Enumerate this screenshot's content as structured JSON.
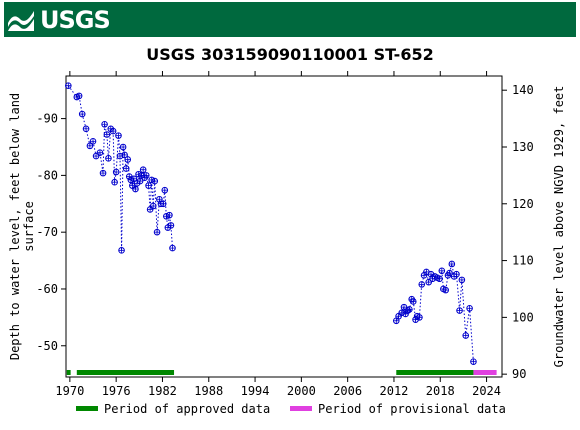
{
  "header": {
    "logo_text": "USGS",
    "logo_icon": "usgs-wave-icon",
    "brand_color": "#00693e"
  },
  "chart_data": {
    "type": "scatter",
    "title": "USGS 303159090110001 ST-652",
    "xlabel": "",
    "ylabel_left": "Depth to water level, feet below land surface",
    "ylabel_right": "Groundwater level above NGVD 1929, feet",
    "xlim": [
      1969.5,
      2026
    ],
    "ylim_left": [
      -44.5,
      -97.5
    ],
    "ylim_right": [
      89.5,
      142.5
    ],
    "y_left_inverted": true,
    "grid": false,
    "x_ticks": [
      1970,
      1976,
      1982,
      1988,
      1994,
      2000,
      2006,
      2012,
      2018,
      2024
    ],
    "x_tick_labels": [
      "1970",
      "1976",
      "1982",
      "1988",
      "1994",
      "2000",
      "2006",
      "2012",
      "2018",
      "2024"
    ],
    "y_left_ticks": [
      -90,
      -80,
      -70,
      -60,
      -50
    ],
    "y_left_tick_labels": [
      "-90",
      "-80",
      "-70",
      "-60",
      "-50"
    ],
    "y_right_ticks": [
      140,
      130,
      120,
      110,
      100,
      90
    ],
    "y_right_tick_labels": [
      "140",
      "130",
      "120",
      "110",
      "100",
      "90"
    ],
    "series": [
      {
        "color": "#0000cc",
        "marker": "open-circle-plus",
        "line_style": "dotted",
        "segments": [
          [
            [
              1969.8,
              -95.8
            ],
            [
              1970.9,
              -93.8
            ],
            [
              1971.2,
              -94
            ],
            [
              1971.6,
              -90.8
            ],
            [
              1972.1,
              -88.2
            ],
            [
              1972.6,
              -85.2
            ],
            [
              1973.0,
              -86
            ],
            [
              1973.4,
              -83.4
            ],
            [
              1973.9,
              -84
            ],
            [
              1974.3,
              -80.4
            ],
            [
              1974.5,
              -89
            ],
            [
              1974.8,
              -87.2
            ],
            [
              1975.0,
              -83
            ],
            [
              1975.3,
              -88.2
            ],
            [
              1975.6,
              -87.8
            ],
            [
              1975.8,
              -78.8
            ],
            [
              1976.0,
              -80.6
            ],
            [
              1976.3,
              -87
            ],
            [
              1976.5,
              -83.4
            ],
            [
              1976.7,
              -66.8
            ],
            [
              1976.9,
              -85
            ],
            [
              1977.1,
              -83.6
            ],
            [
              1977.3,
              -81.2
            ],
            [
              1977.5,
              -82.8
            ],
            [
              1977.7,
              -79.8
            ],
            [
              1977.9,
              -79.2
            ],
            [
              1978.1,
              -78.2
            ],
            [
              1978.3,
              -79.4
            ],
            [
              1978.5,
              -77.6
            ],
            [
              1978.7,
              -78.6
            ],
            [
              1978.9,
              -80.2
            ],
            [
              1979.1,
              -79
            ],
            [
              1979.3,
              -80
            ],
            [
              1979.5,
              -81
            ],
            [
              1979.7,
              -79.6
            ],
            [
              1979.9,
              -80
            ],
            [
              1980.2,
              -78.2
            ],
            [
              1980.4,
              -74
            ],
            [
              1980.6,
              -79.2
            ],
            [
              1980.8,
              -74.6
            ],
            [
              1981.0,
              -79
            ],
            [
              1981.3,
              -70
            ],
            [
              1981.6,
              -75.8
            ],
            [
              1981.8,
              -75
            ],
            [
              1982.1,
              -75
            ],
            [
              1982.3,
              -77.4
            ],
            [
              1982.5,
              -72.8
            ],
            [
              1982.7,
              -70.8
            ],
            [
              1982.9,
              -73
            ],
            [
              1983.1,
              -71.2
            ],
            [
              1983.3,
              -67.2
            ]
          ],
          [
            [
              2012.3,
              -54.4
            ],
            [
              2012.6,
              -55.2
            ],
            [
              2013.0,
              -55.8
            ],
            [
              2013.3,
              -56.8
            ],
            [
              2013.5,
              -55.6
            ],
            [
              2013.8,
              -56.2
            ],
            [
              2014.0,
              -56.4
            ],
            [
              2014.3,
              -58.2
            ],
            [
              2014.5,
              -57.8
            ],
            [
              2014.8,
              -54.6
            ],
            [
              2015.0,
              -55.2
            ],
            [
              2015.3,
              -55
            ],
            [
              2015.6,
              -60.8
            ],
            [
              2015.9,
              -62.4
            ],
            [
              2016.2,
              -63
            ],
            [
              2016.5,
              -61.2
            ],
            [
              2016.8,
              -62.6
            ],
            [
              2017.0,
              -61.8
            ],
            [
              2017.3,
              -62.2
            ],
            [
              2017.6,
              -62
            ],
            [
              2017.9,
              -61.8
            ],
            [
              2018.2,
              -63.2
            ],
            [
              2018.4,
              -60
            ],
            [
              2018.7,
              -59.8
            ],
            [
              2019.0,
              -62.4
            ],
            [
              2019.2,
              -62.8
            ],
            [
              2019.5,
              -64.4
            ],
            [
              2019.8,
              -62.2
            ],
            [
              2020.1,
              -62.6
            ],
            [
              2020.5,
              -56.2
            ],
            [
              2020.8,
              -61.6
            ],
            [
              2021.3,
              -51.8
            ],
            [
              2021.8,
              -56.6
            ],
            [
              2022.3,
              -47.2
            ]
          ]
        ]
      }
    ],
    "approval_bars": [
      {
        "status": "approved",
        "start": 1969.6,
        "end": 1970.1
      },
      {
        "status": "approved",
        "start": 1970.9,
        "end": 1983.5
      },
      {
        "status": "approved",
        "start": 2012.3,
        "end": 2022.3
      },
      {
        "status": "provisional",
        "start": 2022.3,
        "end": 2025.3
      }
    ],
    "legend": {
      "placement": "bottom",
      "entries": [
        {
          "label": "Period of approved data",
          "color": "#008800"
        },
        {
          "label": "Period of provisional data",
          "color": "#e040e0"
        }
      ]
    }
  }
}
